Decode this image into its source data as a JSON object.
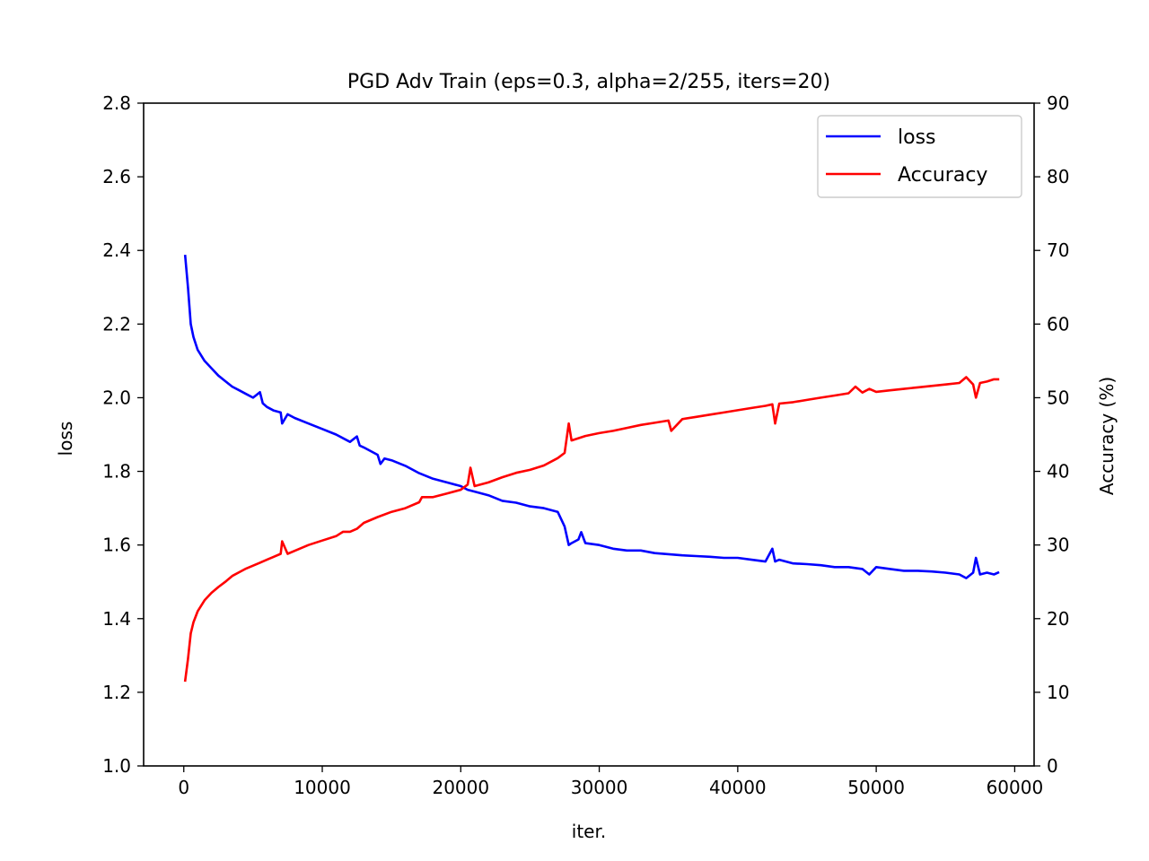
{
  "chart_data": {
    "type": "line",
    "title": "PGD Adv Train (eps=0.3, alpha=2/255, iters=20)",
    "xlabel": "iter.",
    "ylabel_left": "loss",
    "ylabel_right": "Accuracy (%)",
    "xlim": [
      -2900,
      61400
    ],
    "ylim_left": [
      1.0,
      2.8
    ],
    "ylim_right": [
      0,
      90
    ],
    "x_ticks": [
      0,
      10000,
      20000,
      30000,
      40000,
      50000,
      60000
    ],
    "y_ticks_left": [
      "1.0",
      "1.2",
      "1.4",
      "1.6",
      "1.8",
      "2.0",
      "2.2",
      "2.4",
      "2.6",
      "2.8"
    ],
    "y_ticks_right": [
      0,
      10,
      20,
      30,
      40,
      50,
      60,
      70,
      80,
      90
    ],
    "grid": false,
    "legend_position": "top-right",
    "series": [
      {
        "name": "loss",
        "axis": "left",
        "color": "#0000ff",
        "x": [
          100,
          300,
          500,
          700,
          1000,
          1500,
          2000,
          2500,
          3000,
          3500,
          4000,
          4500,
          5000,
          5500,
          5700,
          6000,
          6500,
          7000,
          7100,
          7500,
          8000,
          9000,
          10000,
          11000,
          12000,
          12500,
          12700,
          13000,
          13500,
          14000,
          14200,
          14500,
          15000,
          16000,
          17000,
          18000,
          19000,
          20000,
          20500,
          21000,
          22000,
          23000,
          24000,
          25000,
          26000,
          27000,
          27500,
          27800,
          28000,
          28500,
          28700,
          29000,
          30000,
          31000,
          32000,
          33000,
          34000,
          35000,
          36000,
          37000,
          38000,
          39000,
          40000,
          41000,
          42000,
          42500,
          42700,
          43000,
          44000,
          45000,
          46000,
          47000,
          48000,
          49000,
          49500,
          50000,
          51000,
          52000,
          53000,
          54000,
          55000,
          56000,
          56500,
          57000,
          57200,
          57500,
          58000,
          58500,
          58800
        ],
        "values": [
          2.385,
          2.3,
          2.2,
          2.165,
          2.13,
          2.1,
          2.08,
          2.06,
          2.045,
          2.03,
          2.02,
          2.01,
          2.0,
          2.015,
          1.985,
          1.975,
          1.965,
          1.96,
          1.93,
          1.955,
          1.945,
          1.93,
          1.915,
          1.9,
          1.88,
          1.895,
          1.87,
          1.865,
          1.855,
          1.845,
          1.82,
          1.835,
          1.83,
          1.815,
          1.795,
          1.78,
          1.77,
          1.76,
          1.75,
          1.745,
          1.735,
          1.72,
          1.715,
          1.705,
          1.7,
          1.69,
          1.65,
          1.6,
          1.605,
          1.615,
          1.635,
          1.605,
          1.6,
          1.59,
          1.585,
          1.585,
          1.578,
          1.575,
          1.572,
          1.57,
          1.568,
          1.565,
          1.565,
          1.56,
          1.555,
          1.59,
          1.555,
          1.56,
          1.55,
          1.548,
          1.545,
          1.54,
          1.54,
          1.535,
          1.52,
          1.54,
          1.535,
          1.53,
          1.53,
          1.528,
          1.525,
          1.52,
          1.51,
          1.525,
          1.565,
          1.52,
          1.525,
          1.52,
          1.525
        ]
      },
      {
        "name": "Accuracy",
        "axis": "right",
        "color": "#ff0000",
        "x": [
          100,
          300,
          500,
          700,
          1000,
          1500,
          2000,
          2500,
          3000,
          3500,
          4000,
          4500,
          5000,
          5500,
          6000,
          6500,
          7000,
          7100,
          7500,
          8000,
          9000,
          10000,
          11000,
          11500,
          12000,
          12500,
          13000,
          14000,
          15000,
          16000,
          17000,
          17200,
          18000,
          19000,
          20000,
          20500,
          20700,
          21000,
          22000,
          23000,
          24000,
          25000,
          26000,
          27000,
          27500,
          27800,
          28000,
          29000,
          30000,
          31000,
          32000,
          33000,
          34000,
          35000,
          35200,
          36000,
          37000,
          38000,
          39000,
          40000,
          41000,
          42000,
          42500,
          42700,
          43000,
          44000,
          45000,
          46000,
          47000,
          48000,
          48500,
          49000,
          49500,
          50000,
          51000,
          52000,
          53000,
          54000,
          55000,
          56000,
          56500,
          57000,
          57200,
          57500,
          58000,
          58500,
          58800
        ],
        "values": [
          11.6,
          14.5,
          18.0,
          19.5,
          21.0,
          22.5,
          23.5,
          24.3,
          25.0,
          25.8,
          26.3,
          26.8,
          27.2,
          27.6,
          28.0,
          28.4,
          28.8,
          30.5,
          28.8,
          29.2,
          30.0,
          30.6,
          31.2,
          31.8,
          31.8,
          32.2,
          33.0,
          33.8,
          34.5,
          35.0,
          35.8,
          36.5,
          36.5,
          37.0,
          37.5,
          38.2,
          40.5,
          38.0,
          38.5,
          39.2,
          39.8,
          40.2,
          40.8,
          41.8,
          42.5,
          46.5,
          44.2,
          44.8,
          45.2,
          45.5,
          45.9,
          46.3,
          46.6,
          46.9,
          45.5,
          47.1,
          47.4,
          47.7,
          48.0,
          48.3,
          48.6,
          48.9,
          49.1,
          46.5,
          49.2,
          49.4,
          49.7,
          50.0,
          50.3,
          50.6,
          51.5,
          50.7,
          51.2,
          50.8,
          51.0,
          51.2,
          51.4,
          51.6,
          51.8,
          52.0,
          52.8,
          51.8,
          50.0,
          52.0,
          52.2,
          52.5,
          52.5
        ]
      }
    ]
  }
}
